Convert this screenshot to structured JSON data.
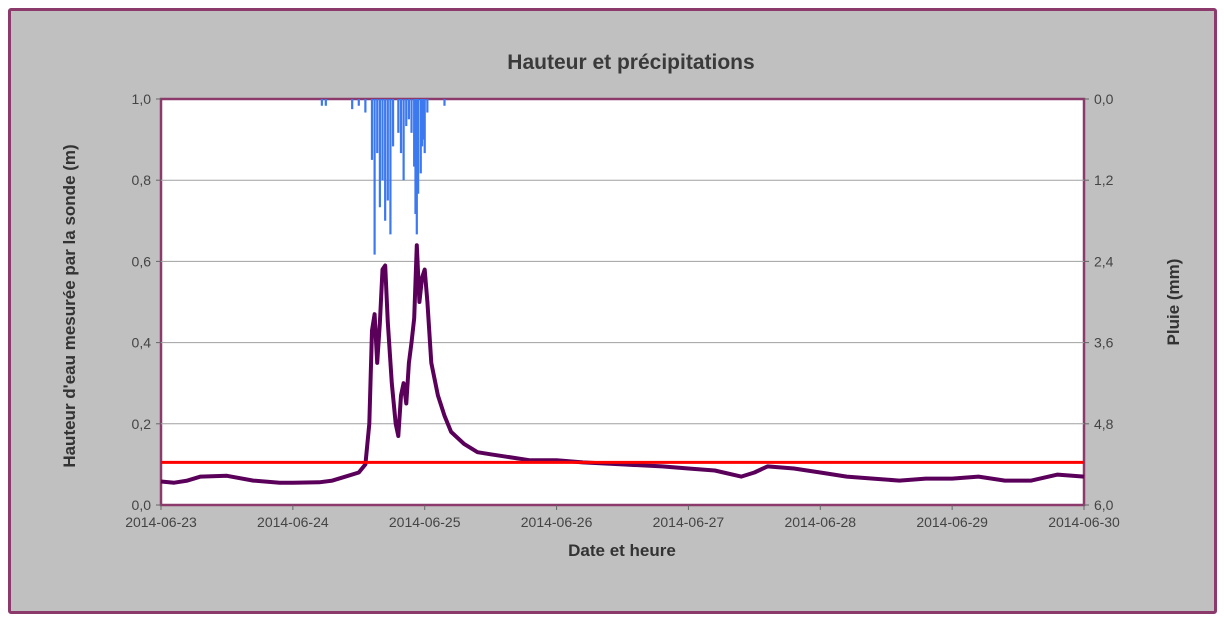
{
  "chart_data": {
    "type": "line",
    "title": "Hauteur et précipitations",
    "xlabel": "Date et heure",
    "ylabel": "Hauteur d'eau mesurée par la sonde (m)",
    "y2label": "Pluie (mm)",
    "x_tick_labels": [
      "2014-06-23",
      "2014-06-24",
      "2014-06-25",
      "2014-06-26",
      "2014-06-27",
      "2014-06-28",
      "2014-06-29",
      "2014-06-30"
    ],
    "y_tick_labels": [
      "0,0",
      "0,2",
      "0,4",
      "0,6",
      "0,8",
      "1,0"
    ],
    "y2_tick_labels": [
      "0,0",
      "1,2",
      "2,4",
      "3,6",
      "4,8",
      "6,0"
    ],
    "xlim_days": [
      0,
      7
    ],
    "ylim": [
      0,
      1.0
    ],
    "y2lim_inverted": [
      0,
      6.0
    ],
    "grid": true,
    "colors": {
      "height": "#5a005a",
      "rain": "#3c78f0",
      "threshold": "#ff0000",
      "frame": "#8b3a6b",
      "background": "#c0c0c0"
    },
    "threshold": 0.105,
    "series": [
      {
        "kind": "height",
        "x": [
          0,
          0.1,
          0.2,
          0.3,
          0.5,
          0.7,
          0.9,
          1.0,
          1.2,
          1.3,
          1.4,
          1.5,
          1.55,
          1.58,
          1.6,
          1.62,
          1.64,
          1.66,
          1.68,
          1.7,
          1.72,
          1.75,
          1.78,
          1.8,
          1.82,
          1.84,
          1.86,
          1.88,
          1.9,
          1.92,
          1.94,
          1.96,
          1.98,
          2.0,
          2.02,
          2.05,
          2.1,
          2.15,
          2.2,
          2.3,
          2.4,
          2.5,
          2.6,
          2.8,
          3.0,
          3.2,
          3.5,
          3.8,
          4.0,
          4.2,
          4.4,
          4.5,
          4.6,
          4.8,
          5.0,
          5.2,
          5.4,
          5.6,
          5.8,
          6.0,
          6.2,
          6.4,
          6.6,
          6.8,
          7.0
        ],
        "y": [
          0.058,
          0.055,
          0.06,
          0.07,
          0.072,
          0.06,
          0.055,
          0.055,
          0.056,
          0.06,
          0.07,
          0.08,
          0.1,
          0.2,
          0.43,
          0.47,
          0.35,
          0.45,
          0.58,
          0.59,
          0.45,
          0.3,
          0.2,
          0.17,
          0.27,
          0.3,
          0.25,
          0.35,
          0.4,
          0.46,
          0.64,
          0.5,
          0.56,
          0.58,
          0.5,
          0.35,
          0.27,
          0.22,
          0.18,
          0.15,
          0.13,
          0.125,
          0.12,
          0.11,
          0.11,
          0.105,
          0.1,
          0.095,
          0.09,
          0.085,
          0.07,
          0.08,
          0.095,
          0.09,
          0.08,
          0.07,
          0.065,
          0.06,
          0.065,
          0.065,
          0.07,
          0.06,
          0.06,
          0.075,
          0.07
        ]
      },
      {
        "kind": "rain",
        "x": [
          1.22,
          1.25,
          1.45,
          1.5,
          1.55,
          1.6,
          1.62,
          1.64,
          1.66,
          1.68,
          1.7,
          1.72,
          1.74,
          1.76,
          1.8,
          1.82,
          1.84,
          1.86,
          1.88,
          1.9,
          1.92,
          1.93,
          1.94,
          1.95,
          1.97,
          1.98,
          1.99,
          2.0,
          2.02,
          2.15
        ],
        "y": [
          0.1,
          0.1,
          0.15,
          0.1,
          0.2,
          0.9,
          2.3,
          0.8,
          1.6,
          1.2,
          1.8,
          1.5,
          2.0,
          0.7,
          0.5,
          0.8,
          1.2,
          0.4,
          0.3,
          0.5,
          1.0,
          1.7,
          2.0,
          1.4,
          1.1,
          0.7,
          0.6,
          0.8,
          0.2,
          0.1
        ]
      }
    ]
  }
}
